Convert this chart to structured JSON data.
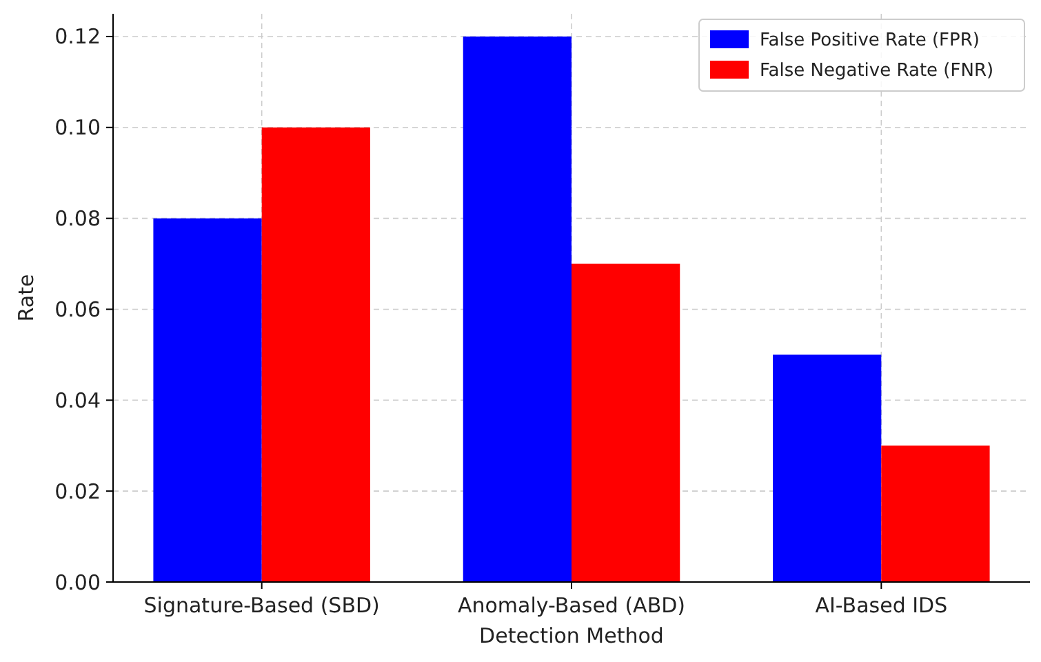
{
  "chart_data": {
    "type": "bar",
    "xlabel": "Detection Method",
    "ylabel": "Rate",
    "categories": [
      "Signature-Based (SBD)",
      "Anomaly-Based (ABD)",
      "AI-Based IDS"
    ],
    "series": [
      {
        "name": "False Positive Rate (FPR)",
        "color": "#0000ff",
        "values": [
          0.08,
          0.12,
          0.05
        ]
      },
      {
        "name": "False Negative Rate (FNR)",
        "color": "#ff0000",
        "values": [
          0.1,
          0.07,
          0.03
        ]
      }
    ],
    "ylim": [
      0,
      0.125
    ],
    "yticks": [
      {
        "value": 0,
        "label": "0.00"
      },
      {
        "value": 0.02,
        "label": "0.02"
      },
      {
        "value": 0.04,
        "label": "0.04"
      },
      {
        "value": 0.06,
        "label": "0.06"
      },
      {
        "value": 0.08,
        "label": "0.08"
      },
      {
        "value": 0.1,
        "label": "0.10"
      },
      {
        "value": 0.12,
        "label": "0.12"
      }
    ],
    "grid": true,
    "legend": "top right"
  }
}
